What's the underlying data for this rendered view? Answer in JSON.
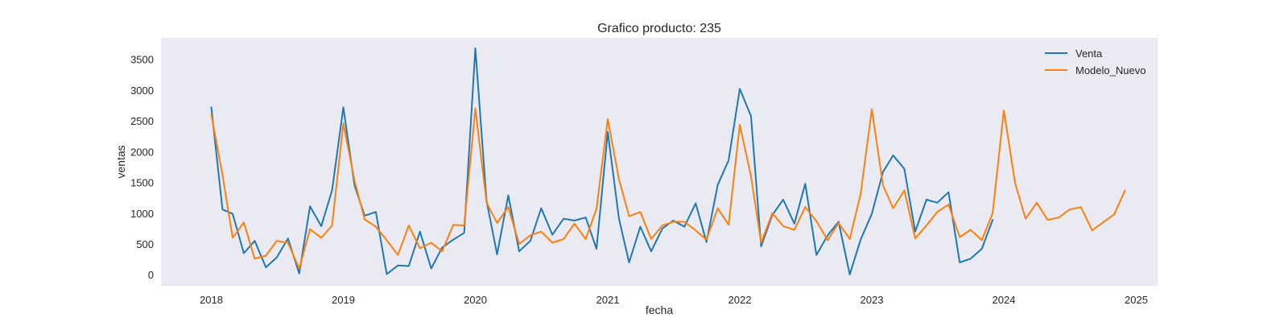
{
  "chart_data": {
    "type": "line",
    "title": "Grafico producto: 235",
    "xlabel": "fecha",
    "ylabel": "ventas",
    "xlim": [
      "2017-08-15",
      "2025-03-01"
    ],
    "ylim": [
      -180,
      3850
    ],
    "grid": false,
    "legend_position": "top-right",
    "x_ticks": [
      {
        "date": "2018-01-01",
        "label": "2018"
      },
      {
        "date": "2019-01-01",
        "label": "2019"
      },
      {
        "date": "2020-01-01",
        "label": "2020"
      },
      {
        "date": "2021-01-01",
        "label": "2021"
      },
      {
        "date": "2022-01-01",
        "label": "2022"
      },
      {
        "date": "2023-01-01",
        "label": "2023"
      },
      {
        "date": "2024-01-01",
        "label": "2024"
      },
      {
        "date": "2025-01-01",
        "label": "2025"
      }
    ],
    "y_ticks": [
      0,
      500,
      1000,
      1500,
      2000,
      2500,
      3000,
      3500
    ],
    "series": [
      {
        "name": "Venta",
        "color": "#1f77b4",
        "start": "2018-01",
        "values": [
          2720,
          1060,
          990,
          350,
          550,
          120,
          280,
          590,
          20,
          1110,
          790,
          1370,
          2720,
          1450,
          960,
          1020,
          10,
          150,
          140,
          700,
          100,
          440,
          570,
          680,
          3680,
          1200,
          330,
          1290,
          380,
          550,
          1080,
          650,
          910,
          880,
          930,
          420,
          2320,
          910,
          200,
          780,
          380,
          750,
          880,
          780,
          1160,
          530,
          1460,
          1860,
          3020,
          2580,
          460,
          970,
          1220,
          830,
          1480,
          320,
          640,
          860,
          5,
          570,
          990,
          1670,
          1940,
          1720,
          700,
          1220,
          1170,
          1340,
          200,
          260,
          420,
          890
        ]
      },
      {
        "name": "Modelo_Nuevo",
        "color": "#ff7f0e",
        "start": "2018-01",
        "values": [
          2600,
          1620,
          600,
          850,
          260,
          310,
          550,
          520,
          100,
          740,
          600,
          800,
          2460,
          1530,
          900,
          780,
          560,
          320,
          800,
          430,
          520,
          380,
          810,
          800,
          2700,
          1170,
          840,
          1100,
          500,
          640,
          700,
          520,
          580,
          830,
          580,
          1070,
          2530,
          1550,
          950,
          1020,
          580,
          800,
          860,
          860,
          720,
          570,
          1080,
          810,
          2440,
          1600,
          520,
          1000,
          790,
          730,
          1100,
          870,
          560,
          840,
          580,
          1310,
          2690,
          1450,
          1080,
          1370,
          590,
          800,
          1020,
          1140,
          610,
          730,
          560,
          1000,
          2670,
          1490,
          910,
          1170,
          890,
          930,
          1060,
          1100,
          720,
          850,
          980,
          1370
        ]
      }
    ]
  }
}
